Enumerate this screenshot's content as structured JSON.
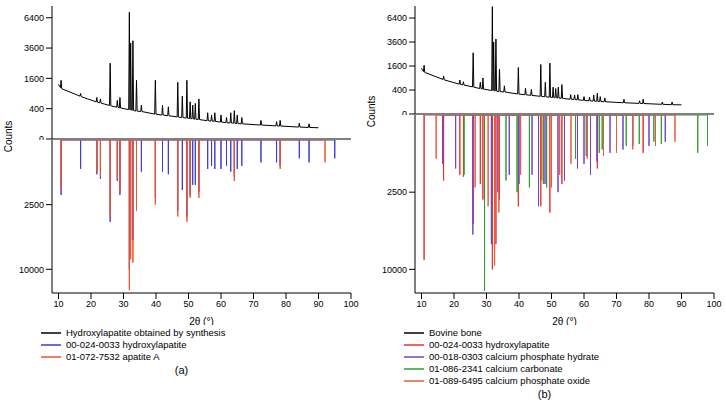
{
  "chart_data": [
    {
      "type": "line",
      "title": "(a)",
      "xlabel": "2θ (°)",
      "ylabel": "Counts",
      "legend": "bottom",
      "xlim": [
        8,
        100
      ],
      "xticks": [
        10,
        20,
        30,
        40,
        50,
        60,
        70,
        80,
        90,
        100
      ],
      "ylim": [
        0,
        7700
      ],
      "yticks": [
        0,
        400,
        1600,
        3600,
        6400
      ],
      "y2lim": [
        0,
        14000
      ],
      "y2ticks": [
        2500,
        10000
      ],
      "series": [
        {
          "name": "Hydroxylapatite obtained by synthesis",
          "type": "line",
          "color": "#000000",
          "x": [
            10,
            10.6,
            10.8,
            11.0,
            16.6,
            16.8,
            17.0,
            21.6,
            21.8,
            22.0,
            22.7,
            22.9,
            23.1,
            25.7,
            25.9,
            26.1,
            27.9,
            28.1,
            28.3,
            28.7,
            28.9,
            29.1,
            31.6,
            31.8,
            32.0,
            32.2,
            32.4,
            32.7,
            32.9,
            33.1,
            33.8,
            34.0,
            34.2,
            35.3,
            35.5,
            35.7,
            39.6,
            39.8,
            40.0,
            41.8,
            42.0,
            42.2,
            43.6,
            43.8,
            44.0,
            46.5,
            46.7,
            46.9,
            47.9,
            48.1,
            48.3,
            49.3,
            49.5,
            49.7,
            50.3,
            50.5,
            50.7,
            51.1,
            51.3,
            51.5,
            51.9,
            52.1,
            52.3,
            53.0,
            53.2,
            53.4,
            55.7,
            55.9,
            56.1,
            56.9,
            57.1,
            57.3,
            57.9,
            58.1,
            58.3,
            59.8,
            60.0,
            60.2,
            61.5,
            61.7,
            61.9,
            62.8,
            63.0,
            63.2,
            63.9,
            64.1,
            64.3,
            64.8,
            65.0,
            65.2,
            66.2,
            66.4,
            66.6,
            72.1,
            72.3,
            72.5,
            76.9,
            77.1,
            77.3,
            78.0,
            78.2,
            78.4,
            83.9,
            84.1,
            84.3,
            86.9,
            87.1,
            87.3,
            90
          ],
          "values": [
            1300,
            1150,
            1500,
            1100,
            800,
            900,
            780,
            600,
            750,
            590,
            570,
            700,
            560,
            490,
            2500,
            480,
            440,
            650,
            440,
            420,
            750,
            420,
            375,
            7000,
            370,
            4000,
            365,
            360,
            4200,
            355,
            340,
            1500,
            338,
            330,
            500,
            328,
            270,
            1500,
            268,
            250,
            500,
            250,
            236,
            450,
            235,
            212,
            1400,
            210,
            200,
            800,
            200,
            190,
            1500,
            188,
            184,
            600,
            182,
            178,
            500,
            176,
            172,
            550,
            170,
            166,
            700,
            164,
            146,
            300,
            145,
            140,
            250,
            139,
            135,
            300,
            134,
            125,
            250,
            124,
            116,
            200,
            115,
            112,
            300,
            111,
            108,
            350,
            107,
            105,
            250,
            104,
            100,
            200,
            100,
            85,
            150,
            85,
            75,
            130,
            75,
            73,
            150,
            73,
            62,
            110,
            62,
            58,
            100,
            58,
            55
          ]
        },
        {
          "name": "00-024-0033 hydroxylapatite",
          "type": "bar",
          "axis": "y2",
          "color": "#3b3bd6",
          "x": [
            10.8,
            16.8,
            21.8,
            22.9,
            25.9,
            28.1,
            28.9,
            31.8,
            32.2,
            32.9,
            34.0,
            35.5,
            39.8,
            42.0,
            43.8,
            46.7,
            48.1,
            49.5,
            50.5,
            51.3,
            52.1,
            53.2,
            55.9,
            57.1,
            58.1,
            60.0,
            61.7,
            63.0,
            64.1,
            65.0,
            66.4,
            72.3,
            77.1,
            78.2,
            84.1,
            87.1,
            95
          ],
          "values": [
            1800,
            500,
            700,
            900,
            4000,
            1000,
            1800,
            10000,
            6000,
            6000,
            2500,
            600,
            2000,
            600,
            700,
            3000,
            1500,
            3500,
            1800,
            1200,
            1200,
            1600,
            500,
            400,
            500,
            500,
            400,
            600,
            800,
            500,
            400,
            300,
            300,
            400,
            200,
            300,
            200
          ]
        },
        {
          "name": "01-072-7532 apatite A",
          "type": "bar",
          "axis": "y2",
          "color": "#f0522a",
          "x": [
            10.8,
            21.8,
            22.9,
            25.9,
            28.1,
            28.9,
            31.8,
            32.2,
            32.9,
            34.0,
            39.8,
            46.7,
            49.5,
            50.5,
            53.2,
            64.1,
            78.2,
            92
          ],
          "values": [
            1400,
            600,
            800,
            3500,
            900,
            1600,
            13500,
            8500,
            9000,
            3000,
            2500,
            3500,
            4000,
            2000,
            2000,
            1000,
            500,
            300
          ]
        }
      ]
    },
    {
      "type": "line",
      "title": "(b)",
      "xlabel": "2θ (°)",
      "ylabel": "Counts",
      "legend": "bottom",
      "xlim": [
        8,
        100
      ],
      "xticks": [
        10,
        20,
        30,
        40,
        50,
        60,
        70,
        80,
        90,
        100
      ],
      "ylim": [
        0,
        8100
      ],
      "yticks": [
        0,
        400,
        1600,
        3600,
        6400
      ],
      "y2lim": [
        0,
        13300
      ],
      "y2ticks": [
        2500,
        10000
      ],
      "series": [
        {
          "name": "Bovine bone",
          "type": "line",
          "color": "#000000",
          "x": [
            10,
            10.6,
            10.8,
            11.0,
            16.6,
            16.8,
            17.0,
            21.6,
            21.8,
            22.0,
            22.7,
            22.9,
            23.1,
            25.7,
            25.9,
            26.1,
            27.9,
            28.1,
            28.3,
            28.7,
            28.9,
            29.1,
            31.6,
            31.8,
            32.0,
            32.2,
            32.4,
            32.7,
            32.9,
            33.1,
            33.8,
            34.0,
            34.2,
            35.3,
            35.5,
            35.7,
            39.6,
            39.8,
            40.0,
            41.8,
            42.0,
            42.2,
            43.6,
            43.8,
            44.0,
            46.5,
            46.7,
            46.9,
            47.9,
            48.1,
            48.3,
            49.3,
            49.5,
            49.7,
            50.3,
            50.5,
            50.7,
            51.1,
            51.3,
            51.5,
            51.9,
            52.1,
            52.3,
            53.0,
            53.2,
            53.4,
            55.7,
            55.9,
            56.1,
            56.9,
            57.1,
            57.3,
            57.9,
            58.1,
            58.3,
            59.8,
            60.0,
            60.2,
            61.5,
            61.7,
            61.9,
            62.8,
            63.0,
            63.2,
            63.9,
            64.1,
            64.3,
            64.8,
            65.0,
            65.2,
            66.2,
            66.4,
            66.6,
            72.1,
            72.3,
            72.5,
            76.9,
            77.1,
            77.3,
            78.0,
            78.2,
            78.4,
            83.9,
            84.1,
            84.3,
            86.9,
            87.1,
            87.3,
            90
          ],
          "values": [
            1450,
            1250,
            1650,
            1200,
            830,
            1000,
            810,
            620,
            800,
            610,
            590,
            720,
            580,
            510,
            2600,
            500,
            450,
            700,
            450,
            430,
            900,
            430,
            385,
            8000,
            380,
            3600,
            375,
            370,
            3900,
            365,
            350,
            1400,
            348,
            338,
            550,
            336,
            278,
            1500,
            276,
            258,
            460,
            256,
            242,
            420,
            240,
            218,
            1700,
            216,
            206,
            700,
            205,
            196,
            1800,
            194,
            190,
            500,
            188,
            184,
            450,
            182,
            178,
            500,
            176,
            172,
            600,
            170,
            152,
            260,
            151,
            146,
            250,
            145,
            140,
            260,
            139,
            130,
            210,
            129,
            121,
            200,
            120,
            116,
            250,
            115,
            112,
            300,
            111,
            109,
            210,
            108,
            104,
            180,
            104,
            88,
            150,
            88,
            78,
            120,
            78,
            76,
            150,
            76,
            65,
            100,
            65,
            60,
            100,
            60,
            58
          ]
        },
        {
          "name": "00-024-0033 hydroxylapatite",
          "type": "bar",
          "axis": "y2",
          "color": "#e8332a",
          "x": [
            10.8,
            16.8,
            21.8,
            22.9,
            25.9,
            28.1,
            28.9,
            31.8,
            32.9,
            34.0,
            39.8,
            46.7,
            49.5,
            53.2,
            64.1,
            78.2
          ],
          "values": [
            8800,
            1800,
            1500,
            1600,
            5000,
            2000,
            3000,
            10000,
            7000,
            3000,
            3500,
            3500,
            4000,
            2000,
            1200,
            600
          ]
        },
        {
          "name": "00-018-0303 calcium phosphate hydrate",
          "type": "bar",
          "axis": "y2",
          "color": "#7040d0",
          "x": [
            16.5,
            20.5,
            25.8,
            31.5,
            33.5,
            37,
            40,
            44,
            46,
            48,
            52,
            54,
            58,
            60,
            62,
            64,
            68,
            72,
            75,
            80,
            85
          ],
          "values": [
            1000,
            1200,
            6000,
            7000,
            2500,
            1500,
            2000,
            1500,
            3500,
            2000,
            2500,
            1800,
            1200,
            1000,
            1500,
            900,
            600,
            500,
            400,
            400,
            300
          ]
        },
        {
          "name": "01-086-2341 calcium carbonate",
          "type": "bar",
          "axis": "y2",
          "color": "#2e9e2e",
          "x": [
            23.1,
            29.4,
            36,
            39.4,
            43.2,
            47.5,
            48.5,
            57.4,
            60.7,
            64.7,
            65.6,
            73,
            77,
            81.5,
            83.8,
            95,
            98
          ],
          "values": [
            1500,
            13000,
            1800,
            2500,
            2200,
            2000,
            2200,
            800,
            700,
            600,
            500,
            400,
            350,
            300,
            350,
            600,
            400
          ]
        },
        {
          "name": "01-089-6495 calcium phosphate oxide",
          "type": "bar",
          "axis": "y2",
          "color": "#e85a3c",
          "x": [
            14.5,
            26.5,
            30.5,
            32.5,
            33.8,
            40.5,
            47,
            50,
            52.5,
            56,
            61,
            66,
            70,
            75,
            82,
            88
          ],
          "values": [
            800,
            2200,
            3500,
            9500,
            4000,
            1500,
            1800,
            2200,
            1500,
            1000,
            800,
            700,
            600,
            500,
            400,
            300
          ]
        }
      ]
    }
  ]
}
